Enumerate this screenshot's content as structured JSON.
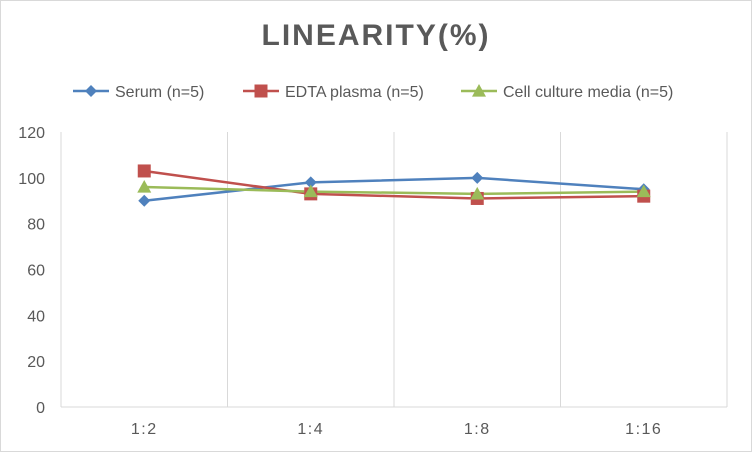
{
  "chart_data": {
    "type": "line",
    "title": "LINEARITY(%)",
    "xlabel": "",
    "ylabel": "",
    "categories": [
      "1:2",
      "1:4",
      "1:8",
      "1:16"
    ],
    "ylim": [
      0,
      120
    ],
    "yticks": [
      0,
      20,
      40,
      60,
      80,
      100,
      120
    ],
    "grid": "vertical",
    "legend": "top",
    "series": [
      {
        "name": "Serum (n=5)",
        "values": [
          90,
          98,
          100,
          95
        ],
        "color": "#4f81bd",
        "marker": "diamond"
      },
      {
        "name": "EDTA plasma (n=5)",
        "values": [
          103,
          93,
          91,
          92
        ],
        "color": "#c0504d",
        "marker": "square"
      },
      {
        "name": "Cell culture media (n=5)",
        "values": [
          96,
          94,
          93,
          94
        ],
        "color": "#9bbb59",
        "marker": "triangle"
      }
    ]
  }
}
